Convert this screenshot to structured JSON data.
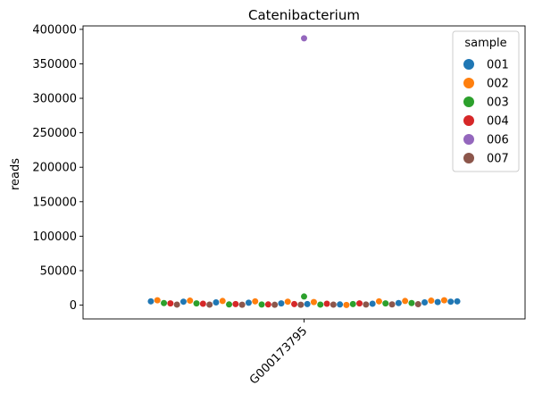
{
  "chart_data": {
    "type": "scatter",
    "subtype": "swarm",
    "title": "Catenibacterium",
    "xlabel": "",
    "ylabel": "reads",
    "categories": [
      "G000173795"
    ],
    "ylim": [
      -20000,
      405000
    ],
    "yticks": [
      0,
      50000,
      100000,
      150000,
      200000,
      250000,
      300000,
      350000,
      400000
    ],
    "grid": false,
    "legend": {
      "title": "sample",
      "placement": "top-right"
    },
    "series": [
      {
        "name": "001",
        "color": "#1f77b4",
        "values": [
          5500,
          5000,
          4000,
          3500,
          2500,
          1500,
          1000,
          2000,
          3000,
          4000,
          4500,
          5000,
          5500
        ]
      },
      {
        "name": "002",
        "color": "#ff7f0e",
        "values": [
          7000,
          6500,
          6000,
          5500,
          5000,
          4500,
          200,
          5500,
          6000,
          6500,
          7000
        ]
      },
      {
        "name": "003",
        "color": "#2ca02c",
        "values": [
          3000,
          2500,
          1000,
          900,
          12500,
          800,
          1500,
          2500,
          3000
        ]
      },
      {
        "name": "004",
        "color": "#d62728",
        "values": [
          2500,
          2000,
          1500,
          1000,
          1500,
          2000,
          2500
        ]
      },
      {
        "name": "006",
        "color": "#9467bd",
        "values": [
          387000
        ]
      },
      {
        "name": "007",
        "color": "#8c564b",
        "values": [
          800,
          700,
          600,
          500,
          600,
          700,
          900,
          1100,
          1300
        ]
      }
    ]
  }
}
